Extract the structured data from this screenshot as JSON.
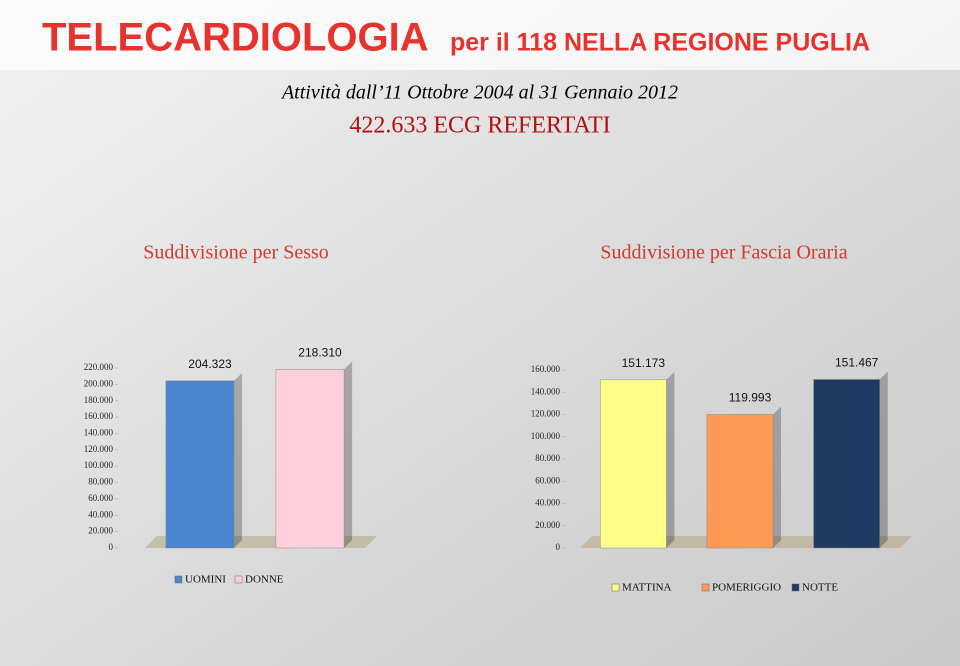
{
  "header": {
    "title": "TELECARDIOLOGIA",
    "title_suffix": "per il 118 NELLA REGIONE PUGLIA",
    "period": "Attività dall’11 Ottobre 2004 al 31 Gennaio 2012",
    "total": "422.633 ECG REFERTATI"
  },
  "chart_data": [
    {
      "type": "bar",
      "title": "Suddivisione per Sesso",
      "categories": [
        null
      ],
      "series": [
        {
          "name": "UOMINI",
          "color": "#4a86d0",
          "values": [
            204323
          ],
          "value_labels": [
            "204.323"
          ]
        },
        {
          "name": "DONNE",
          "color": "#ffcfdc",
          "values": [
            218310
          ],
          "value_labels": [
            "218.310"
          ]
        }
      ],
      "ylim": [
        0,
        220000
      ],
      "yticks": [
        0,
        {
          "value": 20000,
          "label": "20.000"
        },
        {
          "value": 40000,
          "label": "40.000"
        },
        {
          "value": 60000,
          "label": "60.000"
        },
        {
          "value": 80000,
          "label": "80.000"
        },
        {
          "value": 100000,
          "label": "100.000"
        },
        {
          "value": 120000,
          "label": "120.000"
        },
        {
          "value": 140000,
          "label": "140.000"
        },
        {
          "value": 160000,
          "label": "160.000"
        },
        {
          "value": 180000,
          "label": "180.000"
        },
        {
          "value": 200000,
          "label": "200.000"
        },
        {
          "value": 220000,
          "label": "220.000"
        }
      ]
    },
    {
      "type": "bar",
      "title": "Suddivisione per Fascia Oraria",
      "categories": [
        null
      ],
      "series": [
        {
          "name": "MATTINA",
          "color": "#ffff88",
          "values": [
            151173
          ],
          "value_labels": [
            "151.173"
          ]
        },
        {
          "name": "POMERIGGIO",
          "color": "#ff9a55",
          "values": [
            119993
          ],
          "value_labels": [
            "119.993"
          ]
        },
        {
          "name": "NOTTE",
          "color": "#1f3a62",
          "values": [
            151467
          ],
          "value_labels": [
            "151.467"
          ]
        }
      ],
      "ylim": [
        0,
        160000
      ],
      "yticks": [
        0,
        {
          "value": 20000,
          "label": "20.000"
        },
        {
          "value": 40000,
          "label": "40.000"
        },
        {
          "value": 60000,
          "label": "60.000"
        },
        {
          "value": 80000,
          "label": "80.000"
        },
        {
          "value": 100000,
          "label": "100.000"
        },
        {
          "value": 120000,
          "label": "120.000"
        },
        {
          "value": 140000,
          "label": "140.000"
        },
        {
          "value": 160000,
          "label": "160.000"
        }
      ]
    }
  ]
}
